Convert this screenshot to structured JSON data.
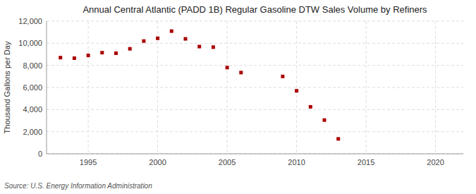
{
  "chart_data": {
    "type": "scatter",
    "title": "Annual Central Atlantic (PADD 1B) Regular Gasoline DTW Sales Volume by Refiners",
    "ylabel": "Thousand Gallons per Day",
    "source": "Source: U.S. Energy Information Administration",
    "x": [
      1993,
      1994,
      1995,
      1996,
      1997,
      1998,
      1999,
      2000,
      2001,
      2002,
      2003,
      2004,
      2005,
      2006,
      2009,
      2010,
      2011,
      2012,
      2013
    ],
    "values": [
      8700,
      8650,
      8900,
      9150,
      9100,
      9500,
      10200,
      10450,
      11100,
      10400,
      9700,
      9650,
      7800,
      7350,
      7000,
      5700,
      4250,
      3050,
      1350
    ],
    "color": "#aa0000",
    "marker": "square",
    "xlim": [
      1992,
      2022
    ],
    "xticks": [
      1995,
      2000,
      2005,
      2010,
      2015,
      2020
    ],
    "ylim": [
      0,
      12000
    ],
    "yticks": [
      0,
      {
        "value": 2000,
        "label": "2,000"
      },
      {
        "value": 4000,
        "label": "4,000"
      },
      {
        "value": 6000,
        "label": "6,000"
      },
      {
        "value": 8000,
        "label": "8,000"
      },
      {
        "value": 10000,
        "label": "10,000"
      },
      {
        "value": 12000,
        "label": "12,000"
      }
    ],
    "grid": true
  }
}
